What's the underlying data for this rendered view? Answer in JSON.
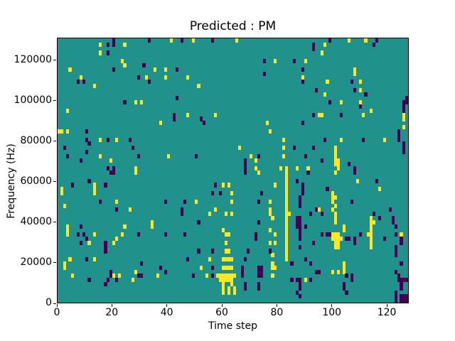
{
  "chart_data": {
    "type": "heatmap",
    "title": "Predicted : PM",
    "xlabel": "Time step",
    "ylabel": "Frequency (Hz)",
    "x_range": [
      0,
      128
    ],
    "y_range": [
      0,
      131072
    ],
    "x_ticks": [
      0,
      20,
      40,
      60,
      80,
      100,
      120
    ],
    "y_ticks": [
      0,
      20000,
      40000,
      60000,
      80000,
      100000,
      120000
    ],
    "grid": {
      "cols": 128,
      "rows": 64
    },
    "legend": "none",
    "colormap": {
      "name": "viridis",
      "background_mid": "#21918c",
      "high": "#fde725",
      "low": "#440154"
    },
    "cell_format": "[time_col 0-127, row_from_top 0-63]; frequency_hz ~= (63 - row) * 2048",
    "high_cells": [
      [
        41,
        0
      ],
      [
        49,
        0
      ],
      [
        65,
        0
      ],
      [
        106,
        0
      ],
      [
        112,
        0
      ],
      [
        15,
        1
      ],
      [
        24,
        1
      ],
      [
        97,
        1
      ],
      [
        15,
        3
      ],
      [
        96,
        3
      ],
      [
        23,
        5
      ],
      [
        79,
        5
      ],
      [
        90,
        5
      ],
      [
        24,
        6
      ],
      [
        4,
        7
      ],
      [
        35,
        7
      ],
      [
        39,
        7
      ],
      [
        108,
        7
      ],
      [
        108,
        8
      ],
      [
        8,
        9
      ],
      [
        32,
        9
      ],
      [
        39,
        9
      ],
      [
        47,
        9
      ],
      [
        89,
        9
      ],
      [
        98,
        10
      ],
      [
        110,
        10
      ],
      [
        13,
        11
      ],
      [
        51,
        11
      ],
      [
        110,
        12
      ],
      [
        97,
        13
      ],
      [
        28,
        15
      ],
      [
        30,
        15
      ],
      [
        103,
        15
      ],
      [
        110,
        15
      ],
      [
        3,
        17
      ],
      [
        114,
        17
      ],
      [
        47,
        18
      ],
      [
        57,
        18
      ],
      [
        95,
        18
      ],
      [
        96,
        18
      ],
      [
        111,
        18
      ],
      [
        126,
        18
      ],
      [
        126,
        19
      ],
      [
        37,
        20
      ],
      [
        76,
        20
      ],
      [
        126,
        21
      ],
      [
        0,
        22
      ],
      [
        1,
        22
      ],
      [
        3,
        22
      ],
      [
        77,
        22
      ],
      [
        15,
        24
      ],
      [
        21,
        24
      ],
      [
        82,
        24
      ],
      [
        103,
        24
      ],
      [
        119,
        24
      ],
      [
        66,
        26
      ],
      [
        82,
        26
      ],
      [
        101,
        26
      ],
      [
        101,
        27
      ],
      [
        15,
        28
      ],
      [
        40,
        28
      ],
      [
        70,
        28
      ],
      [
        82,
        28
      ],
      [
        101,
        28
      ],
      [
        19,
        29
      ],
      [
        72,
        29
      ],
      [
        101,
        29
      ],
      [
        102,
        29
      ],
      [
        101,
        30
      ],
      [
        102,
        30
      ],
      [
        28,
        31
      ],
      [
        72,
        31
      ],
      [
        81,
        31
      ],
      [
        83,
        31
      ],
      [
        87,
        31
      ],
      [
        91,
        31
      ],
      [
        102,
        31
      ],
      [
        28,
        32
      ],
      [
        73,
        32
      ],
      [
        83,
        32
      ],
      [
        101,
        32
      ],
      [
        83,
        33
      ],
      [
        83,
        34
      ],
      [
        109,
        34
      ],
      [
        13,
        35
      ],
      [
        60,
        35
      ],
      [
        62,
        35
      ],
      [
        79,
        35
      ],
      [
        83,
        35
      ],
      [
        1,
        36
      ],
      [
        13,
        36
      ],
      [
        83,
        36
      ],
      [
        117,
        36
      ],
      [
        1,
        37
      ],
      [
        13,
        37
      ],
      [
        63,
        37
      ],
      [
        83,
        37
      ],
      [
        100,
        37
      ],
      [
        83,
        38
      ],
      [
        100,
        38
      ],
      [
        101,
        38
      ],
      [
        21,
        39
      ],
      [
        50,
        39
      ],
      [
        63,
        39
      ],
      [
        77,
        39
      ],
      [
        83,
        39
      ],
      [
        100,
        39
      ],
      [
        2,
        40
      ],
      [
        83,
        40
      ],
      [
        101,
        40
      ],
      [
        26,
        41
      ],
      [
        57,
        41
      ],
      [
        77,
        41
      ],
      [
        83,
        41
      ],
      [
        95,
        41
      ],
      [
        100,
        41
      ],
      [
        55,
        42
      ],
      [
        61,
        42
      ],
      [
        63,
        42
      ],
      [
        77,
        42
      ],
      [
        83,
        42
      ],
      [
        84,
        42
      ],
      [
        101,
        42
      ],
      [
        78,
        43
      ],
      [
        83,
        43
      ],
      [
        101,
        43
      ],
      [
        114,
        43
      ],
      [
        34,
        44
      ],
      [
        83,
        44
      ],
      [
        101,
        44
      ],
      [
        114,
        44
      ],
      [
        115,
        44
      ],
      [
        3,
        45
      ],
      [
        24,
        45
      ],
      [
        34,
        45
      ],
      [
        83,
        45
      ],
      [
        104,
        45
      ],
      [
        114,
        45
      ],
      [
        3,
        46
      ],
      [
        60,
        46
      ],
      [
        77,
        46
      ],
      [
        83,
        46
      ],
      [
        104,
        46
      ],
      [
        114,
        46
      ],
      [
        3,
        47
      ],
      [
        13,
        47
      ],
      [
        23,
        47
      ],
      [
        61,
        47
      ],
      [
        62,
        47
      ],
      [
        79,
        47
      ],
      [
        83,
        47
      ],
      [
        100,
        47
      ],
      [
        101,
        47
      ],
      [
        102,
        47
      ],
      [
        113,
        47
      ],
      [
        114,
        47
      ],
      [
        125,
        47
      ],
      [
        21,
        48
      ],
      [
        83,
        48
      ],
      [
        100,
        48
      ],
      [
        101,
        48
      ],
      [
        102,
        48
      ],
      [
        103,
        48
      ],
      [
        114,
        48
      ],
      [
        11,
        49
      ],
      [
        20,
        49
      ],
      [
        61,
        49
      ],
      [
        77,
        49
      ],
      [
        79,
        49
      ],
      [
        83,
        49
      ],
      [
        101,
        49
      ],
      [
        102,
        49
      ],
      [
        114,
        49
      ],
      [
        83,
        50
      ],
      [
        101,
        50
      ],
      [
        102,
        50
      ],
      [
        114,
        50
      ],
      [
        61,
        51
      ],
      [
        62,
        51
      ],
      [
        83,
        51
      ],
      [
        78,
        52
      ],
      [
        83,
        52
      ],
      [
        4,
        53
      ],
      [
        13,
        53
      ],
      [
        55,
        53
      ],
      [
        60,
        53
      ],
      [
        61,
        53
      ],
      [
        62,
        53
      ],
      [
        63,
        53
      ],
      [
        83,
        53
      ],
      [
        2,
        54
      ],
      [
        78,
        54
      ],
      [
        104,
        54
      ],
      [
        2,
        55
      ],
      [
        52,
        55
      ],
      [
        60,
        55
      ],
      [
        61,
        55
      ],
      [
        62,
        55
      ],
      [
        63,
        55
      ],
      [
        78,
        55
      ],
      [
        79,
        55
      ],
      [
        104,
        55
      ],
      [
        28,
        56
      ],
      [
        100,
        56
      ],
      [
        102,
        56
      ],
      [
        104,
        56
      ],
      [
        5,
        57
      ],
      [
        20,
        57
      ],
      [
        22,
        57
      ],
      [
        36,
        57
      ],
      [
        54,
        57
      ],
      [
        58,
        57
      ],
      [
        59,
        57
      ],
      [
        60,
        57
      ],
      [
        61,
        57
      ],
      [
        62,
        57
      ],
      [
        63,
        57
      ],
      [
        64,
        57
      ],
      [
        78,
        57
      ],
      [
        27,
        58
      ],
      [
        59,
        58
      ],
      [
        60,
        58
      ],
      [
        61,
        58
      ],
      [
        62,
        58
      ],
      [
        63,
        58
      ],
      [
        90,
        58
      ],
      [
        60,
        59
      ],
      [
        63,
        59
      ],
      [
        60,
        60
      ],
      [
        62,
        60
      ],
      [
        64,
        60
      ],
      [
        60,
        61
      ],
      [
        62,
        61
      ],
      [
        64,
        61
      ]
    ],
    "low_cells": [
      [
        20,
        0
      ],
      [
        33,
        0
      ],
      [
        45,
        0
      ],
      [
        56,
        0
      ],
      [
        99,
        0
      ],
      [
        116,
        0
      ],
      [
        18,
        1
      ],
      [
        20,
        1
      ],
      [
        93,
        1
      ],
      [
        115,
        1
      ],
      [
        93,
        2
      ],
      [
        18,
        3
      ],
      [
        75,
        5
      ],
      [
        86,
        5
      ],
      [
        31,
        6
      ],
      [
        20,
        7
      ],
      [
        43,
        7
      ],
      [
        89,
        7
      ],
      [
        75,
        8
      ],
      [
        29,
        9
      ],
      [
        7,
        10
      ],
      [
        9,
        10
      ],
      [
        33,
        10
      ],
      [
        89,
        10
      ],
      [
        107,
        10
      ],
      [
        94,
        12
      ],
      [
        108,
        12
      ],
      [
        112,
        13
      ],
      [
        43,
        14
      ],
      [
        127,
        14
      ],
      [
        24,
        15
      ],
      [
        99,
        15
      ],
      [
        126,
        15
      ],
      [
        127,
        15
      ],
      [
        110,
        16
      ],
      [
        126,
        16
      ],
      [
        126,
        17
      ],
      [
        42,
        18
      ],
      [
        93,
        18
      ],
      [
        103,
        18
      ],
      [
        42,
        19
      ],
      [
        52,
        19
      ],
      [
        53,
        20
      ],
      [
        89,
        20
      ],
      [
        10,
        22
      ],
      [
        124,
        22
      ],
      [
        124,
        23
      ],
      [
        10,
        24
      ],
      [
        18,
        24
      ],
      [
        26,
        24
      ],
      [
        97,
        24
      ],
      [
        111,
        24
      ],
      [
        124,
        24
      ],
      [
        11,
        25
      ],
      [
        126,
        25
      ],
      [
        2,
        26
      ],
      [
        27,
        26
      ],
      [
        86,
        26
      ],
      [
        93,
        26
      ],
      [
        126,
        26
      ],
      [
        10,
        27
      ],
      [
        126,
        27
      ],
      [
        3,
        28
      ],
      [
        29,
        28
      ],
      [
        50,
        28
      ],
      [
        73,
        28
      ],
      [
        90,
        28
      ],
      [
        8,
        29
      ],
      [
        68,
        29
      ],
      [
        96,
        29
      ],
      [
        68,
        30
      ],
      [
        106,
        30
      ],
      [
        18,
        31
      ],
      [
        20,
        31
      ],
      [
        68,
        31
      ],
      [
        108,
        31
      ],
      [
        19,
        32
      ],
      [
        20,
        32
      ],
      [
        68,
        32
      ],
      [
        91,
        32
      ],
      [
        108,
        32
      ],
      [
        11,
        34
      ],
      [
        87,
        34
      ],
      [
        116,
        34
      ],
      [
        5,
        35
      ],
      [
        17,
        35
      ],
      [
        57,
        35
      ],
      [
        89,
        35
      ],
      [
        89,
        36
      ],
      [
        98,
        36
      ],
      [
        56,
        37
      ],
      [
        59,
        37
      ],
      [
        74,
        37
      ],
      [
        89,
        37
      ],
      [
        88,
        38
      ],
      [
        15,
        39
      ],
      [
        39,
        39
      ],
      [
        46,
        39
      ],
      [
        73,
        39
      ],
      [
        88,
        39
      ],
      [
        107,
        39
      ],
      [
        88,
        40
      ],
      [
        21,
        41
      ],
      [
        45,
        41
      ],
      [
        94,
        41
      ],
      [
        121,
        41
      ],
      [
        45,
        42
      ],
      [
        92,
        42
      ],
      [
        96,
        42
      ],
      [
        115,
        42
      ],
      [
        87,
        43
      ],
      [
        88,
        43
      ],
      [
        117,
        43
      ],
      [
        122,
        43
      ],
      [
        51,
        44
      ],
      [
        73,
        44
      ],
      [
        87,
        44
      ],
      [
        88,
        44
      ],
      [
        122,
        44
      ],
      [
        8,
        45
      ],
      [
        87,
        45
      ],
      [
        88,
        45
      ],
      [
        90,
        45
      ],
      [
        123,
        45
      ],
      [
        88,
        46
      ],
      [
        7,
        47
      ],
      [
        9,
        47
      ],
      [
        29,
        47
      ],
      [
        39,
        47
      ],
      [
        46,
        47
      ],
      [
        72,
        47
      ],
      [
        88,
        47
      ],
      [
        96,
        47
      ],
      [
        98,
        47
      ],
      [
        99,
        47
      ],
      [
        110,
        47
      ],
      [
        123,
        47
      ],
      [
        10,
        48
      ],
      [
        72,
        48
      ],
      [
        88,
        48
      ],
      [
        105,
        48
      ],
      [
        106,
        48
      ],
      [
        108,
        48
      ],
      [
        119,
        48
      ],
      [
        125,
        48
      ],
      [
        8,
        49
      ],
      [
        17,
        49
      ],
      [
        93,
        49
      ],
      [
        108,
        49
      ],
      [
        125,
        49
      ],
      [
        17,
        50
      ],
      [
        88,
        50
      ],
      [
        123,
        50
      ],
      [
        17,
        51
      ],
      [
        51,
        51
      ],
      [
        56,
        51
      ],
      [
        69,
        51
      ],
      [
        77,
        51
      ],
      [
        123,
        51
      ],
      [
        123,
        52
      ],
      [
        10,
        53
      ],
      [
        47,
        53
      ],
      [
        68,
        53
      ],
      [
        90,
        53
      ],
      [
        30,
        54
      ],
      [
        85,
        54
      ],
      [
        92,
        54
      ],
      [
        125,
        54
      ],
      [
        37,
        55
      ],
      [
        56,
        55
      ],
      [
        67,
        55
      ],
      [
        73,
        55
      ],
      [
        74,
        55
      ],
      [
        19,
        56
      ],
      [
        39,
        56
      ],
      [
        67,
        56
      ],
      [
        73,
        56
      ],
      [
        74,
        56
      ],
      [
        94,
        56
      ],
      [
        95,
        56
      ],
      [
        123,
        56
      ],
      [
        19,
        57
      ],
      [
        29,
        57
      ],
      [
        30,
        57
      ],
      [
        49,
        57
      ],
      [
        56,
        57
      ],
      [
        67,
        57
      ],
      [
        73,
        57
      ],
      [
        74,
        57
      ],
      [
        105,
        57
      ],
      [
        107,
        57
      ],
      [
        124,
        57
      ],
      [
        11,
        58
      ],
      [
        18,
        58
      ],
      [
        21,
        58
      ],
      [
        85,
        58
      ],
      [
        87,
        58
      ],
      [
        88,
        58
      ],
      [
        92,
        58
      ],
      [
        107,
        58
      ],
      [
        124,
        58
      ],
      [
        125,
        58
      ],
      [
        126,
        58
      ],
      [
        127,
        58
      ],
      [
        17,
        59
      ],
      [
        68,
        59
      ],
      [
        73,
        59
      ],
      [
        88,
        59
      ],
      [
        104,
        59
      ],
      [
        125,
        59
      ],
      [
        68,
        60
      ],
      [
        73,
        60
      ],
      [
        88,
        60
      ],
      [
        104,
        60
      ],
      [
        125,
        60
      ],
      [
        87,
        61
      ],
      [
        105,
        61
      ],
      [
        123,
        61
      ],
      [
        88,
        62
      ],
      [
        123,
        62
      ],
      [
        125,
        62
      ],
      [
        126,
        62
      ],
      [
        127,
        62
      ],
      [
        123,
        63
      ],
      [
        125,
        63
      ],
      [
        126,
        63
      ],
      [
        127,
        63
      ]
    ]
  }
}
